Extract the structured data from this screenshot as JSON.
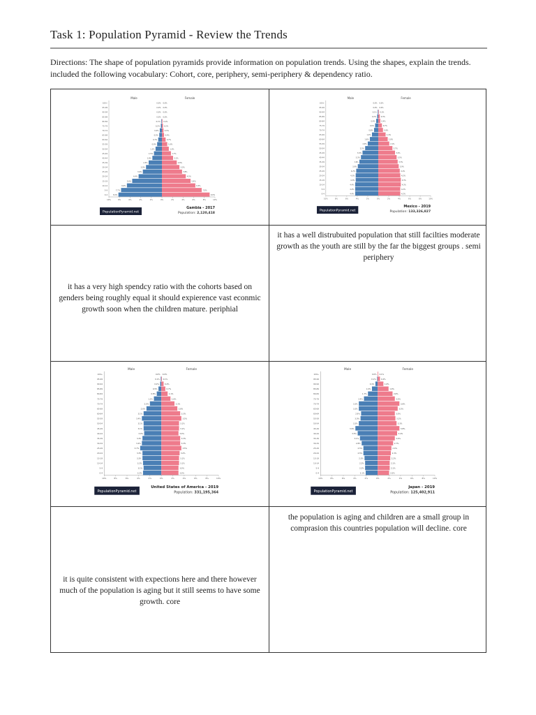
{
  "header": {
    "title": "Task 1:  Population Pyramid - Review the Trends",
    "directions": "Directions: The shape of population pyramids provide information on population trends.  Using the shapes, explain the trends.  included the  following vocabulary: Cohort, core, periphery, semi-periphery & dependency ratio."
  },
  "answers": [
    "it has a very high spendcy ratio with the cohorts based on genders being roughly equal it should expierence vast econmic growth soon when the children mature. periphial",
    "it has a well distrubuited population that still facilties moderate growth as the youth are still by the far the biggest groups . semi periphery",
    "it is quite consistent with expections here and there however much of the population is aging but it still seems to have some growth. core",
    "the population is aging and children are a small group in comprasion this countries population will decline. core"
  ],
  "colors": {
    "male": "#4a7fb5",
    "female": "#ee7b8c",
    "logo_bg": "#1b2238"
  },
  "chart_data": [
    {
      "type": "bar",
      "title": "Gambia - 2017",
      "population_label": "Population:",
      "population": "2,120,418",
      "logo": "PopulationPyramid.net",
      "male_label": "Male",
      "female_label": "Female",
      "categories": [
        "0-4",
        "5-9",
        "10-14",
        "15-19",
        "20-24",
        "25-29",
        "30-34",
        "35-39",
        "40-44",
        "45-49",
        "50-54",
        "55-59",
        "60-64",
        "65-69",
        "70-74",
        "75-79",
        "80-84",
        "85-89",
        "90-94",
        "95-99",
        "100+"
      ],
      "xticks": [
        "10%",
        "8%",
        "6%",
        "4%",
        "2%",
        "0%",
        "2%",
        "4%",
        "6%",
        "8%",
        "10%"
      ],
      "xlim": [
        -10,
        10
      ],
      "series": [
        {
          "name": "Male",
          "values": [
            8.2,
            7.7,
            6.6,
            5.6,
            4.4,
            3.6,
            3.0,
            2.5,
            1.8,
            1.5,
            1.2,
            0.9,
            0.7,
            0.5,
            0.4,
            0.2,
            0.1,
            0.0,
            0.0,
            0.0,
            0.0
          ]
        },
        {
          "name": "Female",
          "values": [
            9.0,
            7.5,
            6.3,
            5.4,
            4.5,
            3.8,
            3.3,
            2.8,
            2.1,
            1.7,
            1.3,
            1.0,
            0.7,
            0.4,
            0.3,
            0.2,
            0.1,
            0.0,
            0.0,
            0.0,
            0.0
          ]
        }
      ]
    },
    {
      "type": "bar",
      "title": "Mexico - 2019",
      "population_label": "Population:",
      "population": "133,326,827",
      "logo": "PopulationPyramid.net",
      "male_label": "Male",
      "female_label": "Female",
      "categories": [
        "0-4",
        "5-9",
        "10-14",
        "15-19",
        "20-24",
        "25-29",
        "30-34",
        "35-39",
        "40-44",
        "45-49",
        "50-54",
        "55-59",
        "60-64",
        "65-69",
        "70-74",
        "75-79",
        "80-84",
        "85-89",
        "90-94",
        "95-99",
        "100+"
      ],
      "xticks": [
        "10%",
        "8%",
        "6%",
        "4%",
        "2%",
        "0%",
        "2%",
        "4%",
        "6%",
        "8%",
        "10%"
      ],
      "xlim": [
        -10,
        10
      ],
      "series": [
        {
          "name": "Male",
          "values": [
            4.4,
            4.4,
            4.4,
            4.3,
            4.3,
            4.2,
            3.9,
            3.6,
            3.3,
            3.0,
            2.5,
            2.0,
            1.6,
            1.2,
            0.8,
            0.6,
            0.4,
            0.2,
            0.1,
            0.0,
            0.0
          ]
        },
        {
          "name": "Female",
          "values": [
            4.2,
            4.2,
            4.3,
            4.3,
            4.2,
            4.1,
            3.9,
            3.7,
            3.5,
            3.2,
            2.7,
            2.1,
            1.8,
            1.4,
            0.9,
            0.7,
            0.4,
            0.3,
            0.1,
            0.0,
            0.0
          ]
        }
      ]
    },
    {
      "type": "bar",
      "title": "United States of America - 2019",
      "population_label": "Population:",
      "population": "331,195,364",
      "logo": "PopulationPyramid.net",
      "male_label": "Male",
      "female_label": "Female",
      "categories": [
        "0-4",
        "5-9",
        "10-14",
        "15-19",
        "20-24",
        "25-29",
        "30-34",
        "35-39",
        "40-44",
        "45-49",
        "50-54",
        "55-59",
        "60-64",
        "65-69",
        "70-74",
        "75-79",
        "80-84",
        "85-89",
        "90-94",
        "95-99",
        "100+"
      ],
      "xticks": [
        "10%",
        "8%",
        "6%",
        "4%",
        "2%",
        "0%",
        "2%",
        "4%",
        "6%",
        "8%",
        "10%"
      ],
      "xlim": [
        -10,
        10
      ],
      "series": [
        {
          "name": "Male",
          "values": [
            3.2,
            3.1,
            3.2,
            3.3,
            3.3,
            3.7,
            3.4,
            3.3,
            3.0,
            3.1,
            3.1,
            3.4,
            3.1,
            2.6,
            2.0,
            1.3,
            0.8,
            0.5,
            0.2,
            0.1,
            0.0
          ]
        },
        {
          "name": "Female",
          "values": [
            3.0,
            3.0,
            3.1,
            3.1,
            3.2,
            3.5,
            3.3,
            3.3,
            3.0,
            3.1,
            3.1,
            3.5,
            3.3,
            2.8,
            2.3,
            1.6,
            1.1,
            0.7,
            0.4,
            0.1,
            0.0
          ]
        }
      ]
    },
    {
      "type": "bar",
      "title": "Japan - 2019",
      "population_label": "Population:",
      "population": "125,402,911",
      "logo": "PopulationPyramid.net",
      "male_label": "Male",
      "female_label": "Female",
      "categories": [
        "0-4",
        "5-9",
        "10-14",
        "15-19",
        "20-24",
        "25-29",
        "30-34",
        "35-39",
        "40-44",
        "45-49",
        "50-54",
        "55-59",
        "60-64",
        "65-69",
        "70-74",
        "75-79",
        "80-84",
        "85-89",
        "90-94",
        "95-99",
        "100+"
      ],
      "xticks": [
        "10%",
        "8%",
        "6%",
        "4%",
        "2%",
        "0%",
        "2%",
        "4%",
        "6%",
        "8%",
        "10%"
      ],
      "xlim": [
        -10,
        10
      ],
      "series": [
        {
          "name": "Male",
          "values": [
            2.1,
            2.2,
            2.2,
            2.3,
            2.5,
            2.5,
            2.8,
            3.1,
            3.5,
            3.9,
            3.3,
            3.0,
            2.9,
            3.3,
            3.3,
            2.4,
            1.7,
            1.0,
            0.4,
            0.1,
            0.0
          ]
        },
        {
          "name": "Female",
          "values": [
            2.0,
            2.1,
            2.1,
            2.2,
            2.3,
            2.4,
            2.7,
            3.0,
            3.4,
            3.8,
            3.3,
            3.1,
            3.0,
            3.5,
            3.8,
            3.0,
            2.6,
            1.9,
            1.0,
            0.4,
            0.1
          ]
        }
      ]
    }
  ]
}
